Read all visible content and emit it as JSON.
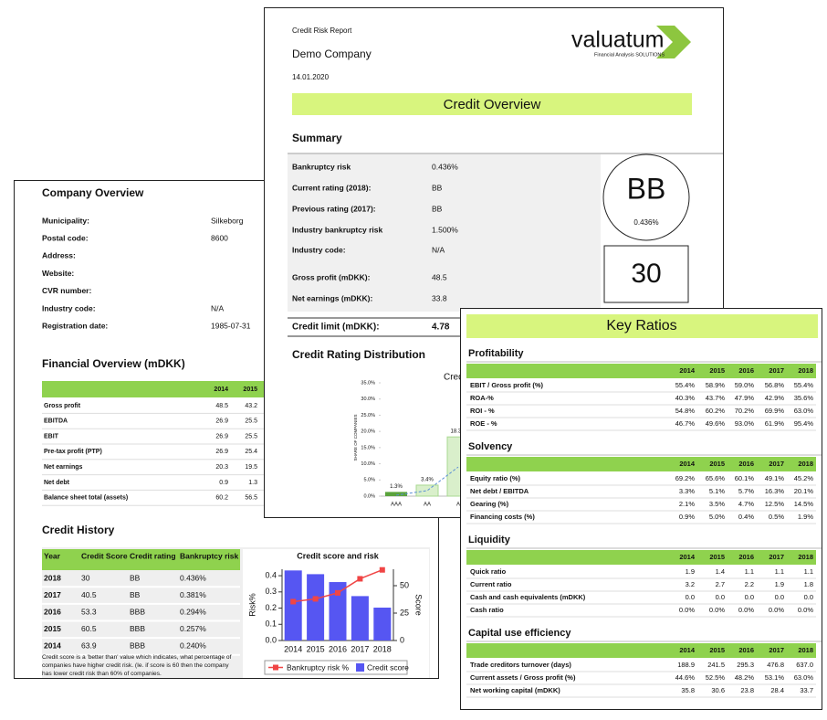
{
  "company_overview": {
    "title": "Company Overview",
    "rows": [
      [
        "Municipality:",
        "Silkeborg"
      ],
      [
        "Postal code:",
        "8600"
      ],
      [
        "Address:",
        ""
      ],
      [
        "Website:",
        ""
      ],
      [
        "CVR number:",
        ""
      ],
      [
        "Industry code:",
        "N/A"
      ],
      [
        "Registration date:",
        "1985-07-31"
      ]
    ]
  },
  "financial_overview": {
    "title": "Financial Overview (mDKK)",
    "columns": [
      "2014",
      "2015"
    ],
    "rows": [
      [
        "Gross profit",
        "48.5",
        "43.2"
      ],
      [
        "EBITDA",
        "26.9",
        "25.5"
      ],
      [
        "EBIT",
        "26.9",
        "25.5"
      ],
      [
        "Pre-tax profit (PTP)",
        "26.9",
        "25.4"
      ],
      [
        "Net earnings",
        "20.3",
        "19.5"
      ],
      [
        "Net debt",
        "0.9",
        "1.3"
      ],
      [
        "Balance sheet total (assets)",
        "60.2",
        "56.5"
      ]
    ]
  },
  "credit_history": {
    "title": "Credit History",
    "columns": [
      "Year",
      "Credit Score",
      "Credit rating",
      "Bankruptcy risk"
    ],
    "rows": [
      [
        "2018",
        "30",
        "BB",
        "0.436%"
      ],
      [
        "2017",
        "40.5",
        "BB",
        "0.381%"
      ],
      [
        "2016",
        "53.3",
        "BBB",
        "0.294%"
      ],
      [
        "2015",
        "60.5",
        "BBB",
        "0.257%"
      ],
      [
        "2014",
        "63.9",
        "BBB",
        "0.240%"
      ]
    ],
    "note": [
      "Credit score is a 'better than' value which indicates, what percentage of",
      "companies have higher credit risk. (Ie. if score is 60 then the company",
      "has lower credit risk than 60% of companies."
    ],
    "chart": {
      "type": "combo",
      "title": "Credit score and risk",
      "categories": [
        "2014",
        "2015",
        "2016",
        "2017",
        "2018"
      ],
      "ylabel": "Risk%",
      "y2label": "Score",
      "ylim": [
        0,
        0.44
      ],
      "yticks": [
        {
          "value": 0,
          "label": "0.0"
        },
        0.1,
        0.2,
        0.3,
        0.4
      ],
      "y2lim": [
        0,
        65
      ],
      "y2ticks": [
        0,
        25,
        50
      ],
      "series": [
        {
          "name": "Bankruptcy risk %",
          "color": "#f04545",
          "values": [
            0.24,
            0.257,
            0.294,
            0.381,
            0.436
          ]
        },
        {
          "name": "Credit score",
          "color": "#5656f2",
          "axis": "y2",
          "values": [
            63.9,
            60.5,
            53.3,
            40.5,
            30
          ]
        }
      ]
    }
  },
  "report": {
    "label": "Credit Risk Report",
    "company": "Demo Company",
    "date": "14.01.2020",
    "logo": "valuatum",
    "logo_tagline": "Financial Analysis SOLUTIONS",
    "banner": "Credit Overview",
    "summary_title": "Summary",
    "summary_rows": [
      [
        "Bankruptcy risk",
        "0.436%"
      ],
      [
        "Current rating (2018):",
        "BB"
      ],
      [
        "Previous rating (2017):",
        "BB"
      ],
      [
        "Industry bankruptcy risk",
        "1.500%"
      ],
      [
        "Industry code:",
        "N/A"
      ],
      [
        "Gross profit (mDKK):",
        "48.5"
      ],
      [
        "Net earnings (mDKK):",
        "33.8"
      ]
    ],
    "credit_limit": [
      "Credit limit (mDKK):",
      "4.78"
    ],
    "rating": "BB",
    "rating_risk": "0.436%",
    "score": "30",
    "distribution_title": "Credit Rating Distribution",
    "distribution": {
      "type": "bar",
      "title": "Credit",
      "ylabel": "SHARE OF COMPANIES",
      "categories": [
        "AAA",
        "AA",
        "A"
      ],
      "values": [
        1.3,
        3.4,
        18.3
      ],
      "value_labels": [
        "1.3%",
        "3.4%",
        "18.3%"
      ],
      "colors": [
        "#5aa33c",
        "#d9efcb",
        "#d9efcb"
      ],
      "trend_values": [
        0.3,
        1.7,
        9
      ],
      "trend_color": "#5b8fd6",
      "ylim": [
        0,
        35
      ],
      "yticks": [
        {
          "value": 0,
          "label": "0.0%"
        },
        {
          "value": 5,
          "label": "5.0%"
        },
        {
          "value": 10,
          "label": "10.0%"
        },
        {
          "value": 15,
          "label": "15.0%"
        },
        {
          "value": 20,
          "label": "20.0%"
        },
        {
          "value": 25,
          "label": "25.0%"
        },
        {
          "value": 30,
          "label": "30.0%"
        },
        {
          "value": 35,
          "label": "35.0%"
        }
      ]
    }
  },
  "key_ratios": {
    "title": "Key Ratios",
    "sections": [
      {
        "title": "Profitability",
        "columns": [
          "2014",
          "2015",
          "2016",
          "2017",
          "2018"
        ],
        "rows": [
          [
            "EBIT / Gross profit (%)",
            "55.4%",
            "58.9%",
            "59.0%",
            "56.8%",
            "55.4%"
          ],
          [
            "ROA-%",
            "40.3%",
            "43.7%",
            "47.9%",
            "42.9%",
            "35.6%"
          ],
          [
            "ROI - %",
            "54.8%",
            "60.2%",
            "70.2%",
            "69.9%",
            "63.0%"
          ],
          [
            "ROE - %",
            "46.7%",
            "49.6%",
            "93.0%",
            "61.9%",
            "95.4%"
          ]
        ]
      },
      {
        "title": "Solvency",
        "columns": [
          "2014",
          "2015",
          "2016",
          "2017",
          "2018"
        ],
        "rows": [
          [
            "Equity ratio (%)",
            "69.2%",
            "65.6%",
            "60.1%",
            "49.1%",
            "45.2%"
          ],
          [
            "Net debt / EBITDA",
            "3.3%",
            "5.1%",
            "5.7%",
            "16.3%",
            "20.1%"
          ],
          [
            "Gearing (%)",
            "2.1%",
            "3.5%",
            "4.7%",
            "12.5%",
            "14.5%"
          ],
          [
            "Financing costs (%)",
            "0.9%",
            "5.0%",
            "0.4%",
            "0.5%",
            "1.9%"
          ]
        ]
      },
      {
        "title": "Liquidity",
        "columns": [
          "2014",
          "2015",
          "2016",
          "2017",
          "2018"
        ],
        "rows": [
          [
            "Quick ratio",
            "1.9",
            "1.4",
            "1.1",
            "1.1",
            "1.1"
          ],
          [
            "Current ratio",
            "3.2",
            "2.7",
            "2.2",
            "1.9",
            "1.8"
          ],
          [
            "Cash and cash equivalents (mDKK)",
            "0.0",
            "0.0",
            "0.0",
            "0.0",
            "0.0"
          ],
          [
            "Cash ratio",
            "0.0%",
            "0.0%",
            "0.0%",
            "0.0%",
            "0.0%"
          ]
        ]
      },
      {
        "title": "Capital use efficiency",
        "columns": [
          "2014",
          "2015",
          "2016",
          "2017",
          "2018"
        ],
        "rows": [
          [
            "Trade creditors turnover (days)",
            "188.9",
            "241.5",
            "295.3",
            "476.8",
            "637.0"
          ],
          [
            "Current assets / Gross profit (%)",
            "44.6%",
            "52.5%",
            "48.2%",
            "53.1%",
            "63.0%"
          ],
          [
            "Net working capital (mDKK)",
            "35.8",
            "30.6",
            "23.8",
            "28.4",
            "33.7"
          ]
        ]
      }
    ]
  }
}
